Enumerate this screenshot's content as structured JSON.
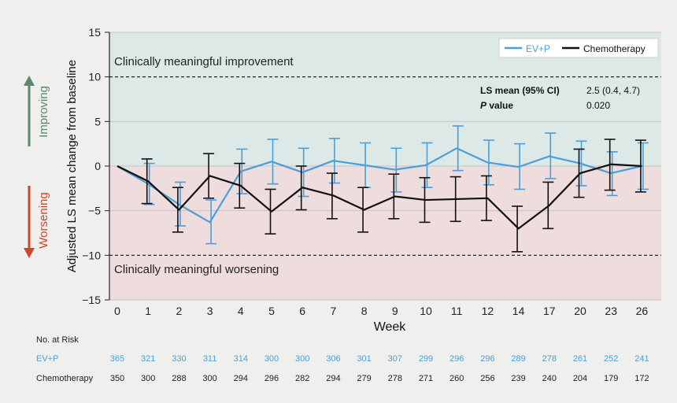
{
  "chart_data": {
    "type": "line",
    "xlabel": "Week",
    "ylabel": "Adjusted LS mean change from baseline",
    "ylim": [
      -15,
      15
    ],
    "yticks": [
      15,
      10,
      5,
      0,
      -5,
      -10,
      -15
    ],
    "ytick_labels": [
      "15",
      "10",
      "5",
      "0",
      "−5",
      "−10",
      "−15"
    ],
    "categories": [
      "0",
      "1",
      "2",
      "3",
      "4",
      "5",
      "6",
      "7",
      "8",
      "9",
      "10",
      "11",
      "12",
      "14",
      "17",
      "20",
      "23",
      "26"
    ],
    "series": [
      {
        "name": "EV+P",
        "color": "#4a9fd8",
        "values": [
          0,
          -2.0,
          -4.3,
          -6.3,
          -0.6,
          0.5,
          -0.7,
          0.6,
          0.1,
          -0.4,
          0.1,
          2.0,
          0.4,
          -0.1,
          1.1,
          0.3,
          -0.8,
          0.0
        ],
        "lower": [
          0,
          -4.3,
          -6.7,
          -8.7,
          -3.1,
          -2.0,
          -3.4,
          -1.9,
          -2.4,
          -2.9,
          -2.4,
          -0.5,
          -2.1,
          -2.6,
          -1.4,
          -2.2,
          -3.3,
          -2.6
        ],
        "upper": [
          0,
          0.3,
          -1.8,
          -3.8,
          1.9,
          3.0,
          2.0,
          3.1,
          2.6,
          2.0,
          2.6,
          4.5,
          2.9,
          2.5,
          3.7,
          2.8,
          1.6,
          2.6
        ]
      },
      {
        "name": "Chemotherapy",
        "color": "#111111",
        "values": [
          0,
          -1.7,
          -4.9,
          -1.1,
          -2.2,
          -5.1,
          -2.4,
          -3.3,
          -4.9,
          -3.4,
          -3.8,
          -3.7,
          -3.6,
          -7.0,
          -4.4,
          -0.8,
          0.2,
          0.0
        ],
        "lower": [
          0,
          -4.2,
          -7.4,
          -3.6,
          -4.7,
          -7.6,
          -4.9,
          -5.9,
          -7.4,
          -5.9,
          -6.3,
          -6.2,
          -6.1,
          -9.6,
          -7.0,
          -3.5,
          -2.7,
          -2.9
        ],
        "upper": [
          0,
          0.8,
          -2.4,
          1.4,
          0.3,
          -2.6,
          0.0,
          -0.8,
          -2.4,
          -0.9,
          -1.3,
          -1.2,
          -1.1,
          -4.5,
          -1.8,
          1.9,
          3.0,
          2.9
        ]
      }
    ],
    "thresholds": [
      10,
      -10
    ],
    "grid": true,
    "legend_position": "top-right",
    "colors": {
      "improve_band": "#dde9e6",
      "worsen_band": "#efdcdc",
      "improving_arrow": "#5a8a6a",
      "worsening_arrow": "#c94a2a"
    },
    "annotations": {
      "improvement": "Clinically meaningful improvement",
      "worsening": "Clinically meaningful worsening",
      "improving": "Improving",
      "worsening_side": "Worsening"
    },
    "stats": {
      "header_label": "LS mean (95% CI)",
      "header_value": "2.5 (0.4, 4.7)",
      "p_italic": "P",
      "p_suffix": " value",
      "p_value": "0.020"
    }
  },
  "risk_table": {
    "title": "No. at Risk",
    "rows": [
      {
        "label": "EV+P",
        "values": [
          "365",
          "321",
          "330",
          "311",
          "314",
          "300",
          "300",
          "306",
          "301",
          "307",
          "299",
          "296",
          "296",
          "289",
          "278",
          "261",
          "252",
          "241"
        ]
      },
      {
        "label": "Chemotherapy",
        "values": [
          "350",
          "300",
          "288",
          "300",
          "294",
          "296",
          "282",
          "294",
          "279",
          "278",
          "271",
          "260",
          "256",
          "239",
          "240",
          "204",
          "179",
          "172"
        ]
      }
    ]
  }
}
